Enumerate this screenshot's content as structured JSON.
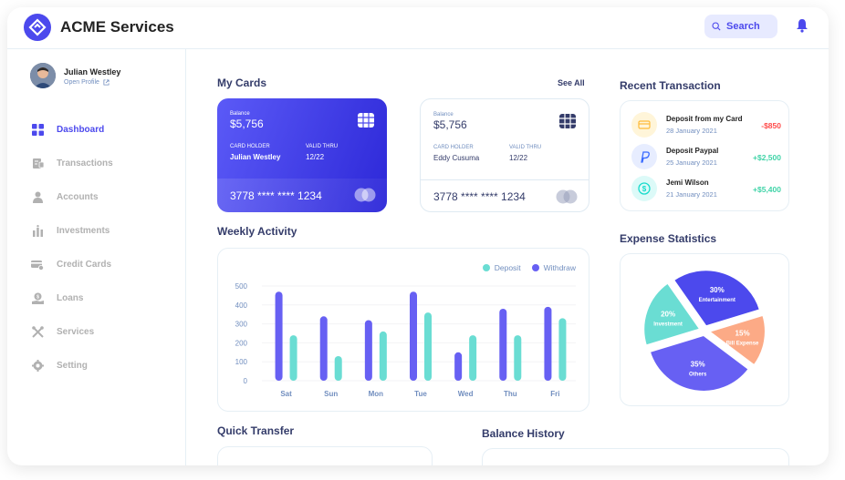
{
  "header": {
    "app_title": "ACME Services",
    "search_label": "Search"
  },
  "user": {
    "name": "Julian Westley",
    "open_profile": "Open Profile"
  },
  "nav": [
    {
      "label": "Dashboard",
      "icon": "dashboard-icon",
      "active": true
    },
    {
      "label": "Transactions",
      "icon": "transactions-icon"
    },
    {
      "label": "Accounts",
      "icon": "accounts-icon"
    },
    {
      "label": "Investments",
      "icon": "investments-icon"
    },
    {
      "label": "Credit Cards",
      "icon": "credit-card-icon"
    },
    {
      "label": "Loans",
      "icon": "loans-icon"
    },
    {
      "label": "Services",
      "icon": "services-icon"
    },
    {
      "label": "Setting",
      "icon": "setting-icon"
    }
  ],
  "my_cards": {
    "title": "My Cards",
    "see_all": "See All",
    "cards": [
      {
        "balance_label": "Balance",
        "balance": "$5,756",
        "holder_label": "CARD HOLDER",
        "holder": "Julian Westley",
        "valid_label": "VALID THRU",
        "valid": "12/22",
        "number": "3778 **** **** 1234"
      },
      {
        "balance_label": "Balance",
        "balance": "$5,756",
        "holder_label": "CARD HOLDER",
        "holder": "Eddy Cusuma",
        "valid_label": "VALID THRU",
        "valid": "12/22",
        "number": "3778 **** **** 1234"
      }
    ]
  },
  "recent_transaction": {
    "title": "Recent Transaction",
    "items": [
      {
        "title": "Deposit from my Card",
        "date": "28 January 2021",
        "amount": "-$850",
        "icon": "card-icon"
      },
      {
        "title": "Deposit Paypal",
        "date": "25 January 2021",
        "amount": "+$2,500",
        "icon": "paypal-icon"
      },
      {
        "title": "Jemi Wilson",
        "date": "21 January 2021",
        "amount": "+$5,400",
        "icon": "dollar-icon"
      }
    ]
  },
  "weekly_activity": {
    "title": "Weekly Activity"
  },
  "expense_statistics": {
    "title": "Expense Statistics"
  },
  "quick_transfer": {
    "title": "Quick Transfer"
  },
  "balance_history": {
    "title": "Balance History"
  },
  "colors": {
    "accent": "#4C49ED",
    "deposit": "#6ADDD3",
    "withdraw": "#6760F3",
    "negative": "#FF4B4A",
    "positive": "#16DBAA",
    "bill": "#FCAA86"
  },
  "chart_data": [
    {
      "type": "bar",
      "title": "Weekly Activity",
      "categories": [
        "Sat",
        "Sun",
        "Mon",
        "Tue",
        "Wed",
        "Thu",
        "Fri"
      ],
      "series": [
        {
          "name": "Withdraw",
          "values": [
            470,
            340,
            320,
            470,
            150,
            380,
            390
          ]
        },
        {
          "name": "Deposit",
          "values": [
            240,
            130,
            260,
            360,
            240,
            240,
            330
          ]
        }
      ],
      "ylim": [
        0,
        500
      ],
      "yticks": [
        0,
        100,
        200,
        300,
        400,
        500
      ]
    },
    {
      "type": "pie",
      "title": "Expense Statistics",
      "slices": [
        {
          "label": "Entertainment",
          "pct": "30%",
          "value": 30,
          "color": "#4C49ED"
        },
        {
          "label": "Bill Expense",
          "pct": "15%",
          "value": 15,
          "color": "#FCAA86"
        },
        {
          "label": "Others",
          "pct": "35%",
          "value": 35,
          "color": "#6760F3"
        },
        {
          "label": "Investment",
          "pct": "20%",
          "value": 20,
          "color": "#6ADDD3"
        }
      ]
    }
  ]
}
